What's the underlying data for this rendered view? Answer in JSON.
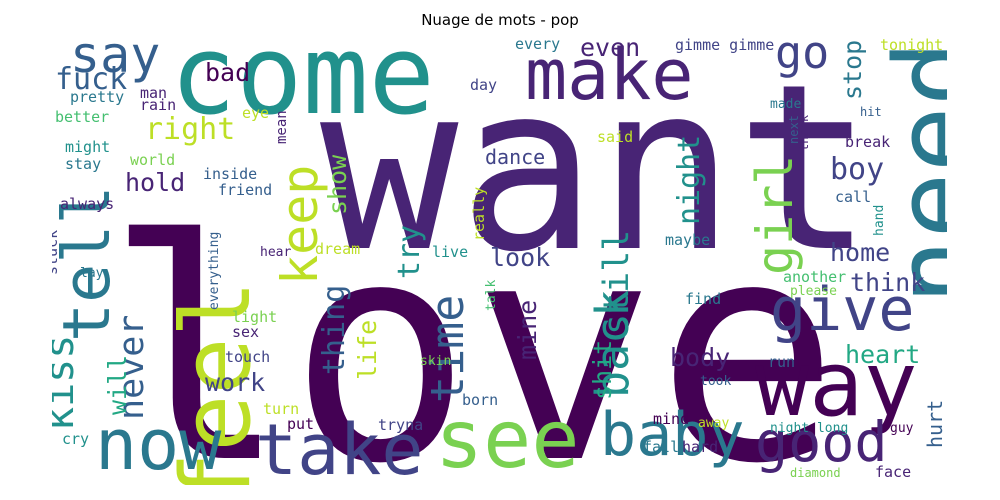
{
  "title": "Nuage de mots - pop",
  "colors": {
    "c1": "#440154",
    "c2": "#482475",
    "c3": "#414487",
    "c4": "#355f8d",
    "c5": "#2a788e",
    "c6": "#21918c",
    "c7": "#22a884",
    "c8": "#44bf70",
    "c9": "#7ad151",
    "c10": "#bddf26",
    "c11": "#fde725"
  },
  "words": [
    {
      "text": "love",
      "color": "c1"
    },
    {
      "text": "want",
      "color": "c2"
    },
    {
      "text": "come",
      "color": "c6"
    },
    {
      "text": "make",
      "color": "c2"
    },
    {
      "text": "need",
      "color": "c5"
    },
    {
      "text": "feel",
      "color": "c10"
    },
    {
      "text": "tell",
      "color": "c5"
    },
    {
      "text": "see",
      "color": "c9"
    },
    {
      "text": "take",
      "color": "c3"
    },
    {
      "text": "now",
      "color": "c5"
    },
    {
      "text": "way",
      "color": "c1"
    },
    {
      "text": "give",
      "color": "c3"
    },
    {
      "text": "baby",
      "color": "c5"
    },
    {
      "text": "good",
      "color": "c2"
    },
    {
      "text": "girl",
      "color": "c9"
    },
    {
      "text": "kiss",
      "color": "c6"
    },
    {
      "text": "say",
      "color": "c4"
    },
    {
      "text": "go",
      "color": "c3"
    },
    {
      "text": "keep",
      "color": "c10"
    },
    {
      "text": "time",
      "color": "c4"
    },
    {
      "text": "back",
      "color": "c6"
    },
    {
      "text": "never",
      "color": "c4"
    },
    {
      "text": "fuck",
      "color": "c4"
    },
    {
      "text": "right",
      "color": "c10"
    },
    {
      "text": "even",
      "color": "c2"
    },
    {
      "text": "bad",
      "color": "c1"
    },
    {
      "text": "stop",
      "color": "c5"
    },
    {
      "text": "tonight",
      "color": "c10"
    },
    {
      "text": "dance",
      "color": "c3"
    },
    {
      "text": "night",
      "color": "c6"
    },
    {
      "text": "boy",
      "color": "c3"
    },
    {
      "text": "show",
      "color": "c9"
    },
    {
      "text": "hold",
      "color": "c2"
    },
    {
      "text": "still",
      "color": "c6"
    },
    {
      "text": "look",
      "color": "c3"
    },
    {
      "text": "home",
      "color": "c3"
    },
    {
      "text": "think",
      "color": "c3"
    },
    {
      "text": "try",
      "color": "c6"
    },
    {
      "text": "thing",
      "color": "c4"
    },
    {
      "text": "life",
      "color": "c10"
    },
    {
      "text": "mine",
      "color": "c2"
    },
    {
      "text": "will",
      "color": "c7"
    },
    {
      "text": "body",
      "color": "c2"
    },
    {
      "text": "heart",
      "color": "c7"
    },
    {
      "text": "shit",
      "color": "c7"
    },
    {
      "text": "work",
      "color": "c3"
    },
    {
      "text": "hurt",
      "color": "c4"
    },
    {
      "text": "every",
      "color": "c5"
    },
    {
      "text": "gimme gimme",
      "color": "c3"
    },
    {
      "text": "pretty",
      "color": "c5"
    },
    {
      "text": "man",
      "color": "c2"
    },
    {
      "text": "eye",
      "color": "c10"
    },
    {
      "text": "day",
      "color": "c3"
    },
    {
      "text": "rain",
      "color": "c2"
    },
    {
      "text": "made",
      "color": "c5"
    },
    {
      "text": "hit",
      "color": "c4"
    },
    {
      "text": "better",
      "color": "c8"
    },
    {
      "text": "might",
      "color": "c6"
    },
    {
      "text": "stay",
      "color": "c5"
    },
    {
      "text": "world",
      "color": "c9"
    },
    {
      "text": "inside",
      "color": "c4"
    },
    {
      "text": "friend",
      "color": "c4"
    },
    {
      "text": "mean",
      "color": "c2"
    },
    {
      "text": "said",
      "color": "c10"
    },
    {
      "text": "break",
      "color": "c2"
    },
    {
      "text": "next",
      "color": "c4"
    },
    {
      "text": "thank",
      "color": "c2"
    },
    {
      "text": "call",
      "color": "c4"
    },
    {
      "text": "always",
      "color": "c2"
    },
    {
      "text": "dream",
      "color": "c10"
    },
    {
      "text": "really",
      "color": "c10"
    },
    {
      "text": "maybe",
      "color": "c5"
    },
    {
      "text": "stuck",
      "color": "c3"
    },
    {
      "text": "everything",
      "color": "c4"
    },
    {
      "text": "hear",
      "color": "c2"
    },
    {
      "text": "live",
      "color": "c6"
    },
    {
      "text": "another",
      "color": "c8"
    },
    {
      "text": "please",
      "color": "c9"
    },
    {
      "text": "hand",
      "color": "c6"
    },
    {
      "text": "lay",
      "color": "c5"
    },
    {
      "text": "talk",
      "color": "c8"
    },
    {
      "text": "find",
      "color": "c5"
    },
    {
      "text": "light",
      "color": "c9"
    },
    {
      "text": "sex",
      "color": "c2"
    },
    {
      "text": "skin",
      "color": "c9"
    },
    {
      "text": "touch",
      "color": "c3"
    },
    {
      "text": "run",
      "color": "c4"
    },
    {
      "text": "took",
      "color": "c4"
    },
    {
      "text": "turn",
      "color": "c10"
    },
    {
      "text": "born",
      "color": "c4"
    },
    {
      "text": "mind",
      "color": "c1"
    },
    {
      "text": "away",
      "color": "c10"
    },
    {
      "text": "put",
      "color": "c1"
    },
    {
      "text": "tryna",
      "color": "c3"
    },
    {
      "text": "night long",
      "color": "c6"
    },
    {
      "text": "guy",
      "color": "c1"
    },
    {
      "text": "cry",
      "color": "c6"
    },
    {
      "text": "fall",
      "color": "c5"
    },
    {
      "text": "hard",
      "color": "c2"
    },
    {
      "text": "diamond",
      "color": "c9"
    },
    {
      "text": "face",
      "color": "c2"
    }
  ]
}
